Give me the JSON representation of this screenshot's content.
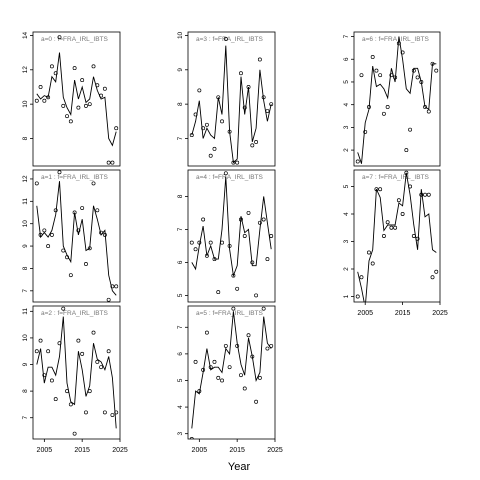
{
  "figure": {
    "xlabel": "Year"
  },
  "chart_data": [
    {
      "type": "line",
      "title": "a=0 : f=FRA_IRL_IBTS",
      "xlim": [
        2002,
        2025
      ],
      "ylim": [
        6.4,
        14.2
      ],
      "xticks": [],
      "yticks": [
        8,
        10,
        12,
        14
      ],
      "points_x": [
        2003,
        2004,
        2005,
        2006,
        2007,
        2008,
        2009,
        2010,
        2011,
        2012,
        2013,
        2014,
        2015,
        2016,
        2017,
        2018,
        2019,
        2020,
        2021,
        2022,
        2023,
        2024
      ],
      "points_y": [
        10.2,
        11.0,
        10.2,
        10.4,
        12.2,
        11.8,
        13.9,
        9.9,
        9.3,
        9.0,
        12.1,
        9.8,
        11.4,
        9.9,
        10.0,
        12.2,
        11.1,
        10.5,
        10.9,
        6.6,
        6.6,
        8.6
      ],
      "line_x": [
        2003,
        2004,
        2005,
        2006,
        2007,
        2008,
        2009,
        2010,
        2011,
        2012,
        2013,
        2014,
        2015,
        2016,
        2017,
        2018,
        2019,
        2020,
        2021,
        2022,
        2023,
        2024
      ],
      "line_y": [
        10.6,
        10.3,
        10.5,
        10.4,
        11.6,
        11.3,
        13.0,
        10.4,
        9.8,
        9.4,
        11.4,
        10.3,
        11.0,
        10.1,
        10.3,
        11.6,
        10.8,
        10.3,
        10.4,
        8.0,
        7.6,
        8.4
      ]
    },
    {
      "type": "line",
      "title": "a=1 : f=FRA_IRL_IBTS",
      "xlim": [
        2002,
        2025
      ],
      "ylim": [
        6.5,
        12.4
      ],
      "xticks": [],
      "yticks": [
        7,
        8,
        9,
        10,
        11,
        12
      ],
      "points_x": [
        2003,
        2004,
        2005,
        2006,
        2007,
        2008,
        2009,
        2010,
        2011,
        2012,
        2013,
        2014,
        2015,
        2016,
        2017,
        2018,
        2019,
        2020,
        2021,
        2022,
        2023,
        2024
      ],
      "points_y": [
        11.8,
        9.5,
        9.7,
        9.0,
        9.5,
        10.6,
        12.3,
        8.8,
        8.5,
        7.7,
        10.5,
        9.7,
        10.7,
        8.2,
        8.9,
        11.8,
        10.6,
        9.6,
        9.5,
        6.6,
        7.2,
        7.2
      ],
      "line_x": [
        2003,
        2004,
        2005,
        2006,
        2007,
        2008,
        2009,
        2010,
        2011,
        2012,
        2013,
        2014,
        2015,
        2016,
        2017,
        2018,
        2019,
        2020,
        2021,
        2022,
        2023,
        2024
      ],
      "line_y": [
        10.8,
        9.4,
        9.6,
        9.4,
        9.7,
        10.4,
        11.9,
        9.0,
        8.6,
        8.3,
        10.5,
        9.5,
        10.2,
        8.8,
        8.9,
        10.8,
        10.2,
        9.5,
        9.7,
        7.7,
        7.0,
        6.8
      ]
    },
    {
      "type": "line",
      "title": "a=2 : f=FRA_IRL_IBTS",
      "xlim": [
        2002,
        2025
      ],
      "ylim": [
        6.2,
        11.2
      ],
      "xticks": [
        2005,
        2015,
        2025
      ],
      "yticks": [
        7,
        8,
        9,
        10,
        11
      ],
      "points_x": [
        2003,
        2004,
        2005,
        2006,
        2007,
        2008,
        2009,
        2010,
        2011,
        2012,
        2013,
        2014,
        2015,
        2016,
        2017,
        2018,
        2019,
        2020,
        2021,
        2022,
        2023,
        2024
      ],
      "points_y": [
        9.5,
        9.9,
        8.6,
        9.5,
        8.4,
        7.7,
        9.8,
        11.1,
        8.0,
        7.5,
        6.4,
        9.9,
        9.4,
        7.2,
        8.0,
        10.2,
        9.1,
        8.9,
        7.2,
        9.5,
        7.1,
        7.2
      ],
      "line_x": [
        2003,
        2004,
        2005,
        2006,
        2007,
        2008,
        2009,
        2010,
        2011,
        2012,
        2013,
        2014,
        2015,
        2016,
        2017,
        2018,
        2019,
        2020,
        2021,
        2022,
        2023,
        2024
      ],
      "line_y": [
        9.0,
        9.6,
        8.3,
        8.9,
        8.9,
        8.6,
        9.3,
        10.8,
        8.3,
        7.6,
        7.5,
        9.5,
        8.8,
        7.8,
        8.2,
        9.8,
        9.2,
        9.1,
        8.8,
        9.3,
        8.5,
        6.6
      ]
    },
    {
      "type": "line",
      "title": "a=3 : f=FRA_IRL_IBTS",
      "xlim": [
        2002,
        2025
      ],
      "ylim": [
        6.2,
        10.1
      ],
      "xticks": [],
      "yticks": [
        7,
        8,
        9,
        10
      ],
      "points_x": [
        2003,
        2004,
        2005,
        2006,
        2007,
        2008,
        2009,
        2010,
        2011,
        2012,
        2013,
        2014,
        2015,
        2016,
        2017,
        2018,
        2019,
        2020,
        2021,
        2022,
        2023,
        2024
      ],
      "points_y": [
        7.1,
        7.7,
        8.4,
        7.3,
        7.4,
        6.5,
        6.7,
        8.2,
        7.5,
        9.9,
        7.2,
        6.3,
        6.3,
        8.9,
        7.9,
        8.5,
        6.8,
        6.9,
        9.3,
        8.2,
        7.8,
        8.0
      ],
      "line_x": [
        2003,
        2004,
        2005,
        2006,
        2007,
        2008,
        2009,
        2010,
        2011,
        2012,
        2013,
        2014,
        2015,
        2016,
        2017,
        2018,
        2019,
        2020,
        2021,
        2022,
        2023,
        2024
      ],
      "line_y": [
        7.1,
        7.5,
        8.1,
        7.0,
        7.3,
        7.1,
        7.0,
        8.2,
        7.7,
        9.7,
        7.2,
        6.3,
        6.4,
        8.8,
        7.7,
        8.5,
        6.9,
        7.3,
        9.0,
        8.1,
        7.5,
        8.0
      ]
    },
    {
      "type": "line",
      "title": "a=4 : f=FRA_IRL_IBTS",
      "xlim": [
        2002,
        2025
      ],
      "ylim": [
        4.8,
        8.8
      ],
      "xticks": [],
      "yticks": [
        5,
        6,
        7,
        8
      ],
      "points_x": [
        2003,
        2004,
        2005,
        2006,
        2007,
        2008,
        2009,
        2010,
        2011,
        2012,
        2013,
        2014,
        2015,
        2016,
        2017,
        2018,
        2019,
        2020,
        2021,
        2022,
        2023,
        2024
      ],
      "points_y": [
        6.6,
        6.4,
        6.6,
        7.3,
        6.2,
        6.6,
        6.1,
        5.1,
        6.6,
        8.7,
        6.5,
        5.6,
        5.2,
        7.3,
        6.8,
        7.5,
        6.0,
        5.0,
        7.2,
        7.3,
        6.1,
        6.8
      ],
      "line_x": [
        2003,
        2004,
        2005,
        2006,
        2007,
        2008,
        2009,
        2010,
        2011,
        2012,
        2013,
        2014,
        2015,
        2016,
        2017,
        2018,
        2019,
        2020,
        2021,
        2022,
        2023,
        2024
      ],
      "line_y": [
        6.0,
        5.8,
        6.5,
        7.1,
        6.2,
        6.5,
        6.1,
        6.1,
        7.0,
        8.6,
        6.4,
        5.6,
        5.9,
        7.4,
        6.9,
        7.0,
        5.9,
        5.9,
        7.0,
        8.0,
        7.2,
        6.4
      ]
    },
    {
      "type": "line",
      "title": "a=5 : f=FRA_IRL_IBTS",
      "xlim": [
        2002,
        2025
      ],
      "ylim": [
        2.8,
        7.8
      ],
      "xticks": [
        2005,
        2015,
        2025
      ],
      "yticks": [
        3,
        4,
        5,
        6,
        7
      ],
      "points_x": [
        2003,
        2004,
        2005,
        2006,
        2007,
        2008,
        2009,
        2010,
        2011,
        2012,
        2013,
        2014,
        2015,
        2016,
        2017,
        2018,
        2019,
        2020,
        2021,
        2022,
        2023,
        2024
      ],
      "points_y": [
        2.8,
        5.7,
        4.6,
        5.4,
        6.8,
        5.5,
        5.7,
        5.1,
        5.0,
        6.3,
        5.5,
        7.7,
        6.3,
        5.2,
        4.7,
        6.7,
        5.9,
        4.2,
        5.1,
        7.7,
        6.2,
        6.3
      ],
      "line_x": [
        2003,
        2004,
        2005,
        2006,
        2007,
        2008,
        2009,
        2010,
        2011,
        2012,
        2013,
        2014,
        2015,
        2016,
        2017,
        2018,
        2019,
        2020,
        2021,
        2022,
        2023,
        2024
      ],
      "line_y": [
        3.2,
        4.6,
        4.5,
        5.3,
        6.2,
        5.4,
        5.5,
        5.5,
        5.3,
        6.2,
        6.0,
        7.6,
        6.4,
        5.6,
        5.2,
        6.6,
        5.9,
        5.0,
        5.3,
        7.4,
        6.4,
        6.2
      ]
    },
    {
      "type": "line",
      "title": "a=6 : f=FRA_IRL_IBTS",
      "xlim": [
        2002,
        2025
      ],
      "ylim": [
        1.3,
        7.2
      ],
      "xticks": [],
      "yticks": [
        2,
        3,
        4,
        5,
        6,
        7
      ],
      "points_x": [
        2003,
        2004,
        2005,
        2006,
        2007,
        2008,
        2009,
        2010,
        2011,
        2012,
        2013,
        2014,
        2015,
        2016,
        2017,
        2018,
        2019,
        2020,
        2021,
        2022,
        2023,
        2024
      ],
      "points_y": [
        1.5,
        5.3,
        2.8,
        3.9,
        6.1,
        5.5,
        5.3,
        3.6,
        3.9,
        5.3,
        5.2,
        6.7,
        6.3,
        2.0,
        2.9,
        5.5,
        5.2,
        5.0,
        3.9,
        3.7,
        5.8,
        5.5
      ],
      "line_x": [
        2003,
        2004,
        2005,
        2006,
        2007,
        2008,
        2009,
        2010,
        2011,
        2012,
        2013,
        2014,
        2015,
        2016,
        2017,
        2018,
        2019,
        2020,
        2021,
        2022,
        2023,
        2024
      ],
      "line_y": [
        1.9,
        1.4,
        3.2,
        3.8,
        5.7,
        4.8,
        4.9,
        4.7,
        4.3,
        5.6,
        5.0,
        7.0,
        6.0,
        4.7,
        4.5,
        5.6,
        5.6,
        5.0,
        3.9,
        3.8,
        5.8,
        5.8
      ]
    },
    {
      "type": "line",
      "title": "a=7 : f=FRA_IRL_IBTS",
      "xlim": [
        2002,
        2025
      ],
      "ylim": [
        0.8,
        5.6
      ],
      "xticks": [
        2005,
        2015,
        2025
      ],
      "yticks": [
        1,
        2,
        3,
        4,
        5
      ],
      "points_x": [
        2003,
        2004,
        2005,
        2006,
        2007,
        2008,
        2009,
        2010,
        2011,
        2012,
        2013,
        2014,
        2015,
        2016,
        2017,
        2018,
        2019,
        2020,
        2021,
        2022,
        2023,
        2024
      ],
      "points_y": [
        1.0,
        1.7,
        0.7,
        2.6,
        2.2,
        4.9,
        4.9,
        3.2,
        3.7,
        3.5,
        3.5,
        4.5,
        4.0,
        5.5,
        5.0,
        3.2,
        3.1,
        4.7,
        4.7,
        4.7,
        1.7,
        1.9
      ],
      "line_x": [
        2003,
        2004,
        2005,
        2006,
        2007,
        2008,
        2009,
        2010,
        2011,
        2012,
        2013,
        2014,
        2015,
        2016,
        2017,
        2018,
        2019,
        2020,
        2021,
        2022,
        2023,
        2024
      ],
      "line_y": [
        1.9,
        1.3,
        0.6,
        2.3,
        2.7,
        4.9,
        4.6,
        3.4,
        3.6,
        3.6,
        3.6,
        4.4,
        4.3,
        5.5,
        4.7,
        3.6,
        2.7,
        4.9,
        3.9,
        4.0,
        2.7,
        2.6
      ]
    }
  ]
}
